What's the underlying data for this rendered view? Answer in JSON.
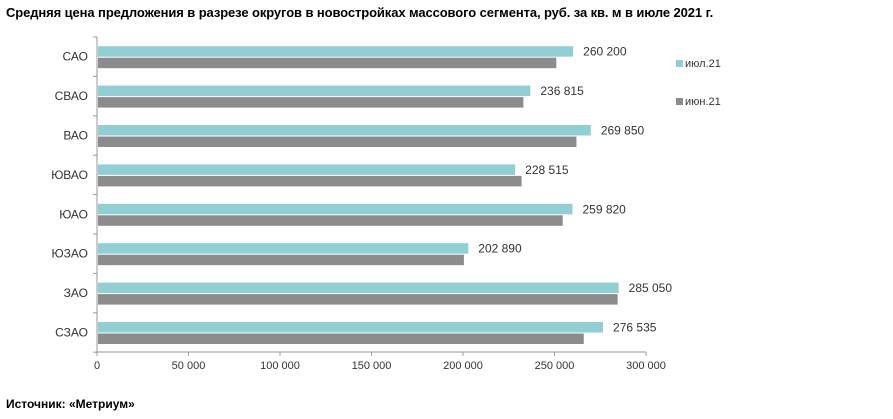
{
  "title": "Средняя цена предложения в разрезе округов в новостройках массового сегмента, руб. за кв. м в июле 2021 г.",
  "source": "Источник: «Метриум»",
  "colors": {
    "jul": "#91cfd4",
    "jun": "#8c8c8c",
    "axis": "#999999"
  },
  "chart_data": {
    "type": "bar",
    "orientation": "horizontal",
    "categories": [
      "САО",
      "СВАО",
      "ВАО",
      "ЮВАО",
      "ЮАО",
      "ЮЗАО",
      "ЗАО",
      "СЗАО"
    ],
    "series": [
      {
        "name": "июл.21",
        "values": [
          260200,
          236815,
          269850,
          228515,
          259820,
          202890,
          285050,
          276535
        ]
      },
      {
        "name": "июн.21",
        "values": [
          251000,
          233000,
          262000,
          232000,
          254500,
          200500,
          284500,
          266000
        ]
      }
    ],
    "data_labels": [
      "260 200",
      "236 815",
      "269 850",
      "228 515",
      "259 820",
      "202 890",
      "285 050",
      "276 535"
    ],
    "xlim": [
      0,
      300000
    ],
    "xticks": [
      0,
      50000,
      100000,
      150000,
      200000,
      250000,
      300000
    ],
    "xtick_labels": [
      "0",
      "50 000",
      "100 000",
      "150 000",
      "200 000",
      "250 000",
      "300 000"
    ],
    "legend_position": "right"
  }
}
